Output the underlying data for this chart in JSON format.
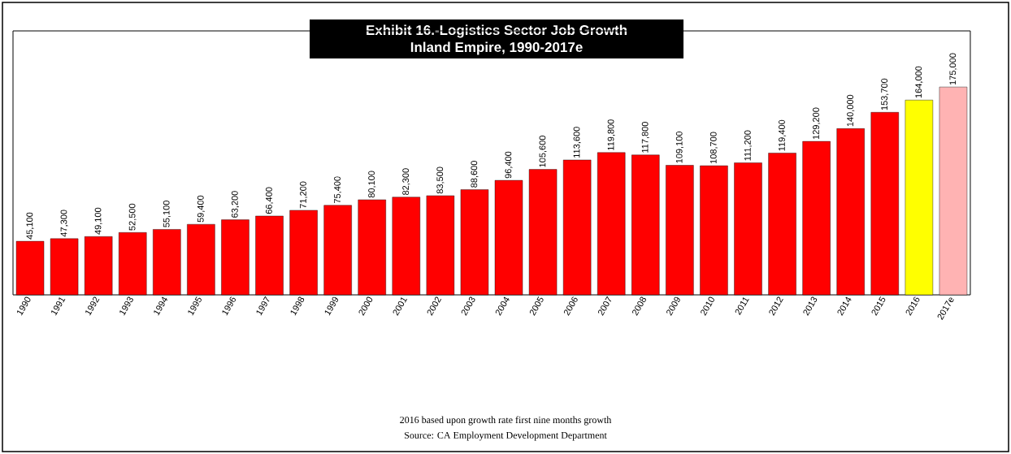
{
  "chart_data": {
    "type": "bar",
    "title": "Exhibit 16.-Logistics Sector Job Growth",
    "subtitle": "Inland Empire, 1990-2017e",
    "categories": [
      "1990",
      "1991",
      "1992",
      "1993",
      "1994",
      "1995",
      "1996",
      "1997",
      "1998",
      "1999",
      "2000",
      "2001",
      "2002",
      "2003",
      "2004",
      "2005",
      "2006",
      "2007",
      "2008",
      "2009",
      "2010",
      "2011",
      "2012",
      "2013",
      "2014",
      "2015",
      "2016",
      "2017e"
    ],
    "values": [
      45100,
      47300,
      49100,
      52500,
      55100,
      59400,
      63200,
      66400,
      71200,
      75400,
      80100,
      82300,
      83500,
      88600,
      96400,
      105600,
      113600,
      119800,
      117800,
      109100,
      108700,
      111200,
      119400,
      129200,
      140000,
      153700,
      164000,
      175000
    ],
    "colors": [
      "#ff0000",
      "#ff0000",
      "#ff0000",
      "#ff0000",
      "#ff0000",
      "#ff0000",
      "#ff0000",
      "#ff0000",
      "#ff0000",
      "#ff0000",
      "#ff0000",
      "#ff0000",
      "#ff0000",
      "#ff0000",
      "#ff0000",
      "#ff0000",
      "#ff0000",
      "#ff0000",
      "#ff0000",
      "#ff0000",
      "#ff0000",
      "#ff0000",
      "#ff0000",
      "#ff0000",
      "#ff0000",
      "#ff0000",
      "#ffff00",
      "#ffb3b3"
    ],
    "value_labels": [
      "45,100",
      "47,300",
      "49,100",
      "52,500",
      "55,100",
      "59,400",
      "63,200",
      "66,400",
      "71,200",
      "75,400",
      "80,100",
      "82,300",
      "83,500",
      "88,600",
      "96,400",
      "105,600",
      "113,600",
      "119,800",
      "117,800",
      "109,100",
      "108,700",
      "111,200",
      "119,400",
      "129,200",
      "140,000",
      "153,700",
      "164,000",
      "175,000"
    ],
    "annotations": [
      "2016 based upon growth rate first nine months growth",
      "Source: CA Employment Development Department"
    ]
  }
}
